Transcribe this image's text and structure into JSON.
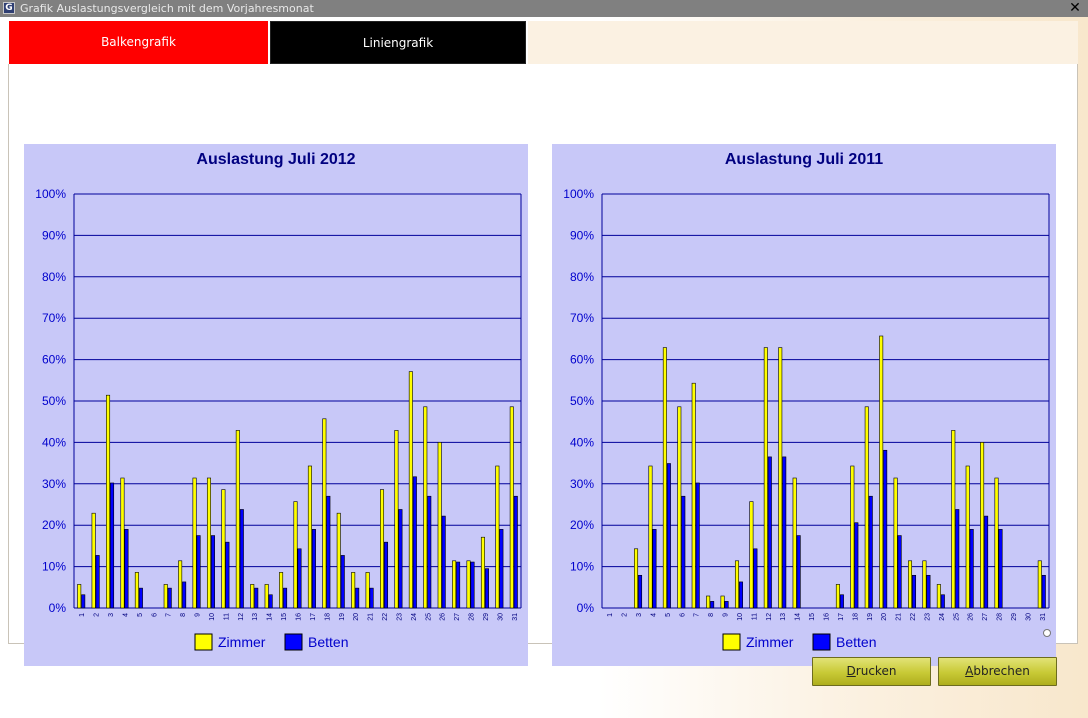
{
  "window": {
    "title": "Grafik Auslastungsvergleich mit dem Vorjahresmonat",
    "close_glyph": "✕"
  },
  "tabs": [
    {
      "label": "Balkengrafik",
      "active": true,
      "color": "#ff0000"
    },
    {
      "label": "Liniengrafik",
      "active": false,
      "color": "#000000"
    }
  ],
  "buttons": {
    "print": {
      "accel": "D",
      "rest": "rucken"
    },
    "cancel": {
      "accel": "A",
      "rest": "bbrechen"
    }
  },
  "colors": {
    "chart_background": "#c8c8f8",
    "axis_and_grid": "#00009a",
    "zimmer": "#ffff00",
    "betten": "#0000ff"
  },
  "chart_data": [
    {
      "type": "bar",
      "title": "Auslastung  Juli  2012",
      "categories": [
        "1",
        "2",
        "3",
        "4",
        "5",
        "6",
        "7",
        "8",
        "9",
        "10",
        "11",
        "12",
        "13",
        "14",
        "15",
        "16",
        "17",
        "18",
        "19",
        "20",
        "21",
        "22",
        "23",
        "24",
        "25",
        "26",
        "27",
        "28",
        "29",
        "30",
        "31"
      ],
      "ylim": [
        0,
        100
      ],
      "yticks": [
        "0%",
        "10%",
        "20%",
        "30%",
        "40%",
        "50%",
        "60%",
        "70%",
        "80%",
        "90%",
        "100%"
      ],
      "grid": true,
      "legend": "bottom-center",
      "series": [
        {
          "name": "Zimmer",
          "values": [
            5.7,
            22.9,
            51.4,
            31.4,
            8.6,
            0,
            5.7,
            11.4,
            31.4,
            31.4,
            28.6,
            42.9,
            5.7,
            5.7,
            8.6,
            25.7,
            34.3,
            45.7,
            22.9,
            8.6,
            8.6,
            28.6,
            42.9,
            57.1,
            48.6,
            40,
            11.4,
            11.4,
            17.1,
            34.3,
            48.6
          ]
        },
        {
          "name": "Betten",
          "values": [
            3.2,
            12.7,
            30.2,
            19,
            4.8,
            0,
            4.8,
            6.3,
            17.5,
            17.5,
            15.9,
            23.8,
            4.8,
            3.2,
            4.8,
            14.3,
            19,
            27,
            12.7,
            4.8,
            4.8,
            15.9,
            23.8,
            31.7,
            27,
            22.2,
            11.1,
            11.1,
            9.5,
            19,
            27
          ]
        }
      ]
    },
    {
      "type": "bar",
      "title": "Auslastung  Juli  2011",
      "categories": [
        "1",
        "2",
        "3",
        "4",
        "5",
        "6",
        "7",
        "8",
        "9",
        "10",
        "11",
        "12",
        "13",
        "14",
        "15",
        "16",
        "17",
        "18",
        "19",
        "20",
        "21",
        "22",
        "23",
        "24",
        "25",
        "26",
        "27",
        "28",
        "29",
        "30",
        "31"
      ],
      "ylim": [
        0,
        100
      ],
      "yticks": [
        "0%",
        "10%",
        "20%",
        "30%",
        "40%",
        "50%",
        "60%",
        "70%",
        "80%",
        "90%",
        "100%"
      ],
      "grid": true,
      "legend": "bottom-center",
      "series": [
        {
          "name": "Zimmer",
          "values": [
            0,
            0,
            14.3,
            34.3,
            62.9,
            48.6,
            54.3,
            2.9,
            2.9,
            11.4,
            25.7,
            62.9,
            62.9,
            31.4,
            0,
            0,
            5.7,
            34.3,
            48.6,
            65.7,
            31.4,
            11.4,
            11.4,
            5.7,
            42.9,
            34.3,
            40,
            31.4,
            0,
            0,
            11.4
          ]
        },
        {
          "name": "Betten",
          "values": [
            0,
            0,
            7.9,
            19,
            34.9,
            27,
            30.2,
            1.6,
            1.6,
            6.3,
            14.3,
            36.5,
            36.5,
            17.5,
            0,
            0,
            3.2,
            20.6,
            27,
            38.1,
            17.5,
            7.9,
            7.9,
            3.2,
            23.8,
            19,
            22.2,
            19,
            0,
            0,
            7.9
          ]
        }
      ]
    }
  ]
}
